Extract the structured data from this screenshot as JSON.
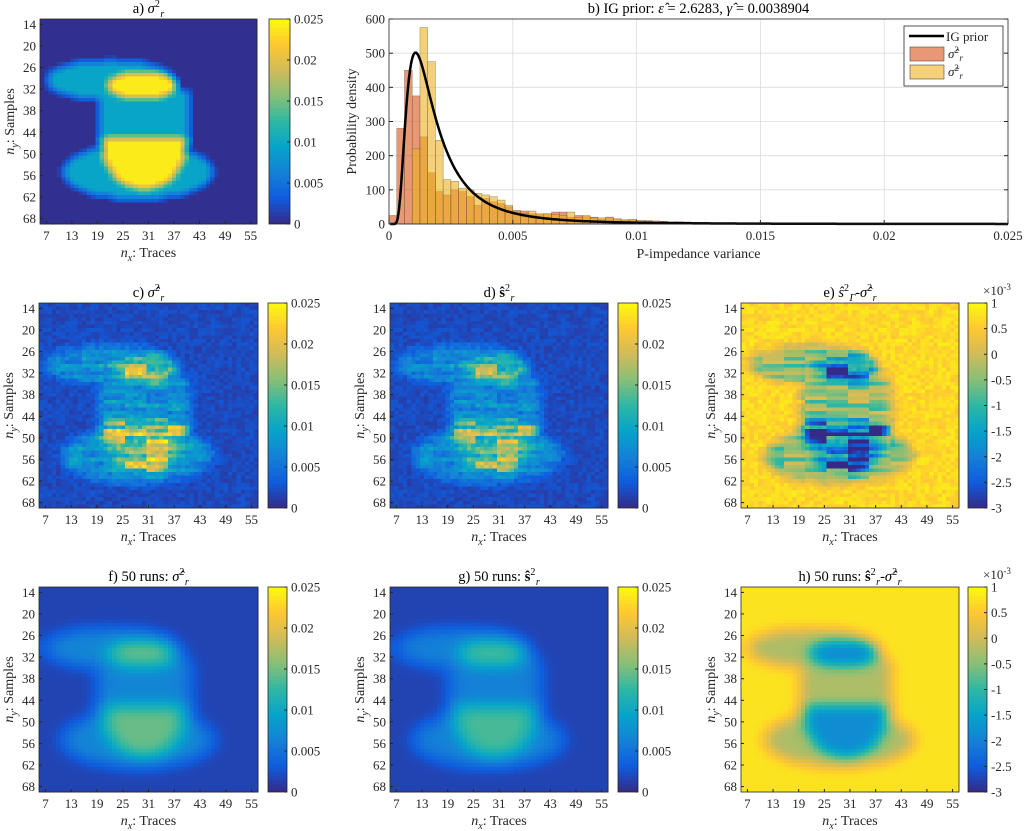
{
  "chart_data": [
    {
      "id": "a",
      "type": "heatmap",
      "title": [
        {
          "k": "n",
          "t": "a) "
        },
        {
          "k": "i",
          "t": "σ"
        },
        {
          "k": "stack",
          "sup": "2",
          "sub": "r"
        }
      ],
      "xlabel": {
        "var": "n",
        "sub": "x",
        "text": ": Traces"
      },
      "ylabel": {
        "var": "n",
        "sub": "y",
        "text": ": Samples"
      },
      "xticks": [
        "7",
        "13",
        "19",
        "25",
        "31",
        "37",
        "43",
        "49",
        "55"
      ],
      "yticks": [
        "14",
        "20",
        "26",
        "32",
        "38",
        "44",
        "50",
        "56",
        "62",
        "68"
      ],
      "xlim": [
        5.5,
        56.5
      ],
      "ylim": [
        12.5,
        69.5
      ],
      "clim": [
        0,
        0.025
      ],
      "cbticks": [
        "0",
        "0.005",
        "0.01",
        "0.015",
        "0.02",
        "0.025"
      ],
      "model": {
        "background": 0.0003,
        "mid_value": 0.0095,
        "high_value": 0.024,
        "regions": [
          {
            "shape": "ellipse",
            "cx": 22,
            "cy": 29.5,
            "rx": 15,
            "ry": 5.5,
            "level": "mid"
          },
          {
            "shape": "rect",
            "x0": 20,
            "x1": 40,
            "y0": 33,
            "y1": 46,
            "level": "mid"
          },
          {
            "shape": "ellipse",
            "cx": 28.5,
            "cy": 55,
            "rx": 17.5,
            "ry": 7.5,
            "level": "mid"
          },
          {
            "shape": "ellipse",
            "cx": 29.5,
            "cy": 31,
            "rx": 8,
            "ry": 4,
            "level": "high"
          },
          {
            "shape": "ellipse",
            "cx": 30,
            "cy": 47,
            "rx": 10,
            "ry": 13,
            "ymin": 46,
            "level": "high"
          }
        ]
      }
    },
    {
      "id": "b",
      "type": "bar",
      "title": [
        {
          "k": "n",
          "t": "b) IG prior: "
        },
        {
          "k": "i",
          "t": "ε̂"
        },
        {
          "k": "n",
          "t": " = 2.6283, "
        },
        {
          "k": "i",
          "t": "γ̂"
        },
        {
          "k": "n",
          "t": " = 0.0038904"
        }
      ],
      "xlabel": "P-impedance variance",
      "ylabel": "Probability density",
      "xlim": [
        0,
        0.025
      ],
      "ylim": [
        0,
        600
      ],
      "xticks": [
        0,
        0.005,
        0.01,
        0.015,
        0.02,
        0.025
      ],
      "xticklabels": [
        "0",
        "0.005",
        "0.01",
        "0.015",
        "0.02",
        "0.025"
      ],
      "yticks": [
        0,
        100,
        200,
        300,
        400,
        500,
        600
      ],
      "grid": true,
      "legend_position": "top-right",
      "bin_width": 0.0003125,
      "ig_prior": {
        "name": "IG prior",
        "shape": 2.6283,
        "scale": 0.0038904,
        "color": "#000000"
      },
      "series": [
        {
          "name": "σ̂²ᵣ",
          "sym": "σ̂",
          "color": "#d95319",
          "values": [
            25,
            280,
            450,
            375,
            255,
            150,
            95,
            85,
            100,
            95,
            80,
            55,
            75,
            65,
            60,
            50,
            40,
            38,
            30,
            28,
            30,
            35,
            35,
            20,
            25,
            22,
            20,
            15,
            20,
            15,
            12,
            12,
            10,
            10,
            8,
            8,
            6,
            7,
            5,
            5,
            4,
            4,
            3,
            3,
            4,
            2,
            3,
            2,
            2,
            1,
            2,
            1,
            1,
            1,
            1,
            1,
            1,
            1,
            2,
            1,
            1,
            0,
            1,
            1,
            0,
            1,
            0,
            0,
            1,
            0,
            0,
            0,
            1,
            0,
            0,
            0,
            0,
            0,
            0,
            0
          ]
        },
        {
          "name": "σ̃²ᵣ",
          "sym": "σ̃",
          "color": "#edb120",
          "values": [
            0,
            0,
            0,
            220,
            575,
            475,
            245,
            130,
            125,
            105,
            100,
            90,
            85,
            80,
            70,
            55,
            35,
            30,
            38,
            30,
            30,
            28,
            25,
            35,
            20,
            25,
            18,
            18,
            20,
            15,
            12,
            14,
            10,
            8,
            9,
            7,
            6,
            5,
            6,
            4,
            4,
            3,
            3,
            2,
            3,
            2,
            2,
            1,
            1,
            1,
            1,
            1,
            1,
            1,
            1,
            1,
            1,
            1,
            1,
            1,
            0,
            1,
            0,
            1,
            0,
            0,
            1,
            0,
            0,
            0,
            0,
            0,
            0,
            0,
            0,
            0,
            0,
            0,
            0,
            0
          ]
        }
      ]
    },
    {
      "id": "c",
      "type": "heatmap",
      "title": [
        {
          "k": "n",
          "t": "c) "
        },
        {
          "k": "i",
          "t": "σ̂"
        },
        {
          "k": "stack",
          "sup": "2",
          "sub": "r"
        }
      ],
      "clim": [
        0,
        0.025
      ],
      "cbticks": [
        "0",
        "0.005",
        "0.01",
        "0.015",
        "0.02",
        "0.025"
      ],
      "derived": "noisy estimate",
      "scale": 0.62
    },
    {
      "id": "d",
      "type": "heatmap",
      "title": [
        {
          "k": "n",
          "t": "d) "
        },
        {
          "k": "b",
          "t": "ŝ"
        },
        {
          "k": "stack",
          "sup": "2",
          "sub": "r"
        }
      ],
      "clim": [
        0,
        0.025
      ],
      "cbticks": [
        "0",
        "0.005",
        "0.01",
        "0.015",
        "0.02",
        "0.025"
      ],
      "derived": "noisy estimate",
      "scale": 0.55
    },
    {
      "id": "e",
      "type": "heatmap",
      "title": [
        {
          "k": "n",
          "t": "e) "
        },
        {
          "k": "i",
          "t": "ŝ"
        },
        {
          "k": "stack",
          "sup": "2",
          "sub": "Γ"
        },
        {
          "k": "n",
          "t": "-"
        },
        {
          "k": "i",
          "t": "σ̂"
        },
        {
          "k": "stack",
          "sup": "2",
          "sub": "r"
        }
      ],
      "clim": [
        -0.003,
        0.001
      ],
      "cbticks": [
        "-3",
        "-2.5",
        "-2",
        "-1.5",
        "-1",
        "-0.5",
        "0",
        "0.5",
        "1"
      ],
      "exponent": {
        "base": "×10",
        "exp": "-3"
      },
      "derived": "noisy difference"
    },
    {
      "id": "f",
      "type": "heatmap",
      "title": [
        {
          "k": "n",
          "t": "f) 50 runs: "
        },
        {
          "k": "i",
          "t": "σ̂"
        },
        {
          "k": "stack",
          "sup": "2",
          "sub": "r"
        }
      ],
      "clim": [
        0,
        0.025
      ],
      "cbticks": [
        "0",
        "0.005",
        "0.01",
        "0.015",
        "0.02",
        "0.025"
      ],
      "derived": "smooth mean",
      "scale": 0.55
    },
    {
      "id": "g",
      "type": "heatmap",
      "title": [
        {
          "k": "n",
          "t": "g) 50 runs: "
        },
        {
          "k": "b",
          "t": "ŝ"
        },
        {
          "k": "stack",
          "sup": "2",
          "sub": "r"
        }
      ],
      "clim": [
        0,
        0.025
      ],
      "cbticks": [
        "0",
        "0.005",
        "0.01",
        "0.015",
        "0.02",
        "0.025"
      ],
      "derived": "smooth mean",
      "scale": 0.5
    },
    {
      "id": "h",
      "type": "heatmap",
      "title": [
        {
          "k": "n",
          "t": "h) 50 runs: "
        },
        {
          "k": "b",
          "t": "ŝ"
        },
        {
          "k": "stack",
          "sup": "2",
          "sub": "r"
        },
        {
          "k": "n",
          "t": "-"
        },
        {
          "k": "i",
          "t": "σ̂"
        },
        {
          "k": "stack",
          "sup": "2",
          "sub": "r"
        }
      ],
      "clim": [
        -0.003,
        0.001
      ],
      "cbticks": [
        "-3",
        "-2.5",
        "-2",
        "-1.5",
        "-1",
        "-0.5",
        "0",
        "0.5",
        "1"
      ],
      "exponent": {
        "base": "×10",
        "exp": "-3"
      },
      "derived": "smooth difference"
    }
  ],
  "colormap": [
    "#352A87",
    "#0F5CDD",
    "#1481D6",
    "#06A4CA",
    "#2EB7A4",
    "#87BF77",
    "#D1BB59",
    "#FEC832",
    "#F9FB0E"
  ]
}
